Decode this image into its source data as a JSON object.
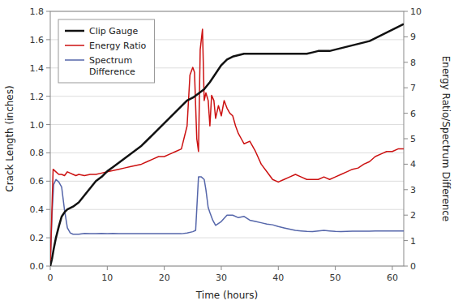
{
  "chart_data": {
    "type": "line",
    "xlabel": "Time (hours)",
    "ylabel": "Crack Length (inches)",
    "y2label": "Energy Ratio/Spectrum Difference",
    "xlim": [
      0,
      62
    ],
    "ylim": [
      0.0,
      1.8
    ],
    "y2lim": [
      0,
      10
    ],
    "xticks": [
      0,
      10,
      20,
      30,
      40,
      50,
      60
    ],
    "yticks": [
      {
        "value": 0.0,
        "label": "0.0"
      },
      0.2,
      0.4,
      0.6,
      0.8,
      {
        "value": 1.0,
        "label": "1.0"
      },
      1.2,
      1.4,
      1.6,
      1.8
    ],
    "y2ticks": [
      0,
      1,
      2,
      3,
      4,
      5,
      6,
      7,
      8,
      9,
      10
    ],
    "grid": true,
    "legend": "upper left",
    "series": [
      {
        "name": "Clip Gauge",
        "color": "#111111",
        "x": [
          0,
          0.3,
          0.6,
          1.0,
          1.5,
          2.0,
          2.5,
          3.0,
          3.5,
          4.0,
          5.0,
          6.0,
          7.0,
          8.0,
          9.0,
          10.0,
          11.0,
          12.0,
          13.0,
          14.0,
          15.0,
          16.0,
          17.0,
          18.0,
          19.0,
          20.0,
          21.0,
          22.0,
          23.0,
          24.0,
          25.0,
          26.0,
          27.0,
          28.0,
          29.0,
          30.0,
          31.0,
          32.0,
          33.0,
          34.0,
          35.0,
          36.0,
          37.0,
          38.0,
          39.0,
          40.0,
          41.0,
          42.0,
          43.0,
          44.0,
          45.0,
          46.0,
          47.0,
          48.0,
          49.0,
          50.0,
          51.0,
          52.0,
          53.0,
          54.0,
          55.0,
          56.0,
          57.0,
          58.0,
          59.0,
          60.0,
          61.0,
          62.0
        ],
        "values": [
          0.0,
          0.05,
          0.12,
          0.2,
          0.28,
          0.35,
          0.38,
          0.4,
          0.41,
          0.42,
          0.45,
          0.5,
          0.55,
          0.6,
          0.63,
          0.67,
          0.7,
          0.73,
          0.76,
          0.79,
          0.82,
          0.85,
          0.89,
          0.93,
          0.97,
          1.01,
          1.05,
          1.09,
          1.13,
          1.17,
          1.19,
          1.22,
          1.25,
          1.3,
          1.36,
          1.42,
          1.46,
          1.48,
          1.49,
          1.5,
          1.5,
          1.5,
          1.5,
          1.5,
          1.5,
          1.5,
          1.5,
          1.5,
          1.5,
          1.5,
          1.5,
          1.51,
          1.52,
          1.52,
          1.52,
          1.53,
          1.54,
          1.55,
          1.56,
          1.57,
          1.58,
          1.59,
          1.61,
          1.63,
          1.65,
          1.67,
          1.69,
          1.71
        ]
      },
      {
        "name": "Energy Ratio",
        "color": "#cc1111",
        "axis": "y2",
        "x": [
          0.0,
          0.5,
          1.0,
          1.5,
          2.0,
          2.5,
          3.0,
          3.5,
          4.0,
          4.5,
          5.0,
          6.0,
          7.0,
          8.0,
          9.0,
          10.0,
          11.0,
          12.0,
          13.0,
          14.0,
          15.0,
          16.0,
          17.0,
          18.0,
          19.0,
          20.0,
          21.0,
          22.0,
          23.0,
          24.0,
          24.5,
          25.0,
          25.3,
          25.7,
          26.0,
          26.3,
          26.7,
          27.0,
          27.3,
          27.7,
          28.0,
          28.3,
          28.7,
          29.0,
          29.5,
          30.0,
          30.5,
          31.0,
          31.5,
          32.0,
          32.5,
          33.0,
          33.5,
          34.0,
          35.0,
          36.0,
          37.0,
          38.0,
          39.0,
          40.0,
          41.0,
          42.0,
          43.0,
          44.0,
          45.0,
          46.0,
          47.0,
          48.0,
          49.0,
          50.0,
          51.0,
          52.0,
          53.0,
          54.0,
          55.0,
          56.0,
          57.0,
          58.0,
          59.0,
          60.0,
          61.0,
          62.0
        ],
        "values": [
          0.0,
          3.8,
          3.7,
          3.6,
          3.6,
          3.55,
          3.7,
          3.65,
          3.6,
          3.55,
          3.6,
          3.55,
          3.6,
          3.6,
          3.65,
          3.7,
          3.75,
          3.8,
          3.85,
          3.9,
          3.95,
          4.0,
          4.1,
          4.2,
          4.3,
          4.3,
          4.4,
          4.5,
          4.6,
          5.5,
          7.5,
          7.8,
          7.6,
          5.0,
          4.5,
          8.5,
          9.3,
          6.5,
          6.8,
          6.5,
          5.5,
          6.7,
          6.5,
          5.8,
          6.3,
          5.9,
          6.5,
          6.2,
          6.0,
          5.9,
          5.5,
          5.2,
          5.0,
          4.8,
          4.9,
          4.5,
          4.0,
          3.7,
          3.4,
          3.3,
          3.4,
          3.5,
          3.6,
          3.5,
          3.4,
          3.4,
          3.4,
          3.5,
          3.4,
          3.5,
          3.6,
          3.7,
          3.8,
          3.85,
          4.0,
          4.1,
          4.3,
          4.4,
          4.5,
          4.5,
          4.6,
          4.6
        ]
      },
      {
        "name": "Spectrum\nDifference",
        "color": "#5566aa",
        "axis": "y2",
        "x": [
          0.0,
          0.3,
          0.6,
          1.0,
          1.5,
          2.0,
          2.5,
          3.0,
          3.5,
          4.0,
          5.0,
          6.0,
          7.0,
          8.0,
          9.0,
          10.0,
          11.0,
          12.0,
          13.0,
          14.0,
          15.0,
          16.0,
          17.0,
          18.0,
          19.0,
          20.0,
          21.0,
          22.0,
          23.0,
          24.0,
          25.0,
          25.5,
          26.0,
          26.5,
          27.0,
          27.3,
          27.7,
          28.0,
          28.5,
          29.0,
          30.0,
          31.0,
          32.0,
          33.0,
          34.0,
          35.0,
          36.0,
          37.0,
          38.0,
          39.0,
          40.0,
          41.0,
          42.0,
          43.0,
          44.0,
          45.0,
          46.0,
          47.0,
          48.0,
          49.0,
          50.0,
          51.0,
          52.0,
          53.0,
          54.0,
          55.0,
          56.0,
          57.0,
          58.0,
          59.0,
          60.0,
          61.0,
          62.0
        ],
        "values": [
          0.0,
          2.0,
          3.2,
          3.4,
          3.3,
          3.1,
          2.2,
          1.5,
          1.3,
          1.25,
          1.25,
          1.28,
          1.27,
          1.27,
          1.28,
          1.27,
          1.28,
          1.27,
          1.27,
          1.27,
          1.27,
          1.27,
          1.27,
          1.27,
          1.27,
          1.27,
          1.27,
          1.27,
          1.27,
          1.3,
          1.35,
          1.4,
          3.5,
          3.5,
          3.4,
          3.0,
          2.3,
          2.1,
          1.8,
          1.6,
          1.75,
          2.0,
          2.0,
          1.9,
          1.95,
          1.8,
          1.75,
          1.7,
          1.65,
          1.62,
          1.55,
          1.5,
          1.45,
          1.4,
          1.38,
          1.36,
          1.35,
          1.38,
          1.4,
          1.38,
          1.36,
          1.35,
          1.36,
          1.37,
          1.37,
          1.37,
          1.37,
          1.38,
          1.38,
          1.38,
          1.38,
          1.38,
          1.38
        ]
      }
    ]
  }
}
